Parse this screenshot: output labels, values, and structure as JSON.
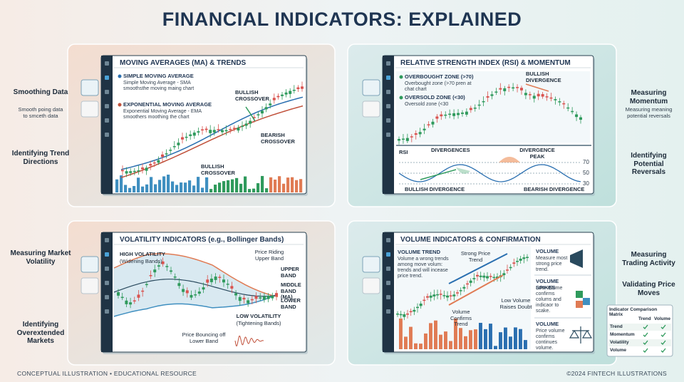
{
  "header": {
    "title": "FINANCIAL INDICATORS: EXPLAINED"
  },
  "footer": {
    "left": "CONCEPTUAL ILLUSTRATION • EDUCATIONAL RESOURCE",
    "right": "©2024 FINTECH ILLUSTRATIONS"
  },
  "panels": [
    {
      "title": "MOVING AVERAGES (MA) & TRENDS",
      "side_labels": [
        {
          "title": "Smoothing Data",
          "text": "Smooth poing data to smceth data"
        },
        {
          "title": "Identifying Trend Directions"
        }
      ],
      "legend": [
        {
          "title": "SIMPLE MOVING AVERAGE",
          "text": "Simple Moving Average - SMA smoothsthe moving maing chart"
        },
        {
          "title": "EXPONENTIAL MOVING AVERAGE",
          "text": "Exponential Moving Average - EMA smoothers moothing the chart"
        }
      ],
      "annotations": [
        "BULLISH CROSSOVER",
        "BEARISH CROSSOVER",
        "BULLISH CROSSOVER"
      ]
    },
    {
      "title": "RELATIVE STRENGTH INDEX (RSI) & MOMENTUM",
      "side_labels": [
        {
          "title": "Measuring Momentum",
          "text": "Measuring meaning potential reversals"
        },
        {
          "title": "Identifying Potential Reversals"
        }
      ],
      "legend": [
        {
          "title": "OVERBOUGHT ZONE (>70)",
          "text": "Overbought zone (>70 pren at chat chart"
        },
        {
          "title": "OVERSOLD ZONE (<30)",
          "text": "Oversold zone (<30"
        }
      ],
      "annotations": [
        "BULLISH DIVERGENCE",
        "DIVERGENCES",
        "DIVERGENCE PEAK",
        "BULLISH DIVERGENCE",
        "BEARISH DIVERGENCE"
      ],
      "rsi_label": "RSI",
      "rsi_ticks": [
        70,
        50,
        30
      ]
    },
    {
      "title": "VOLATILITY INDICATORS (e.g., Bollinger Bands)",
      "side_labels": [
        {
          "title": "Measuring Market Volatility"
        },
        {
          "title": "Identifying Overextended Markets"
        }
      ],
      "annotations": [
        "HIGH VOLATILITY",
        "(Widening Bands)",
        "Price Riding Upper Band",
        "UPPER BAND",
        "MIDDLE BAND (MA)",
        "LOWER BAND",
        "LOW VOLATILITY",
        "(Tightening Bands)",
        "Price Bouncing off Lower Band"
      ]
    },
    {
      "title": "VOLUME INDICATORS & CONFIRMATION",
      "side_labels": [
        {
          "title": "Measuring Trading Activity"
        },
        {
          "title": "Validating Price Moves"
        }
      ],
      "legend": {
        "title": "VOLUME TREND",
        "text": "Volume a wrong trends among move volum: trends and will incease price trend."
      },
      "annotations": [
        "Strong Price Trend",
        "Volume Confirms Trend",
        "Low Volume Raises Doubt"
      ],
      "notes": [
        {
          "title": "VOLUME",
          "text": "Measure most strong price trend."
        },
        {
          "title": "VOLUME SPIKES",
          "text": "Low volume confirms colums and indicaor to scake."
        },
        {
          "title": "VOLUME",
          "text": "Price volume confirms continues volume."
        }
      ],
      "matrix": {
        "title": "Indicator Comparison Matrix",
        "columns": [
          "Trend",
          "Volume"
        ],
        "rows": [
          "Trend",
          "Momentum",
          "Volatility",
          "Volume"
        ]
      }
    }
  ]
}
